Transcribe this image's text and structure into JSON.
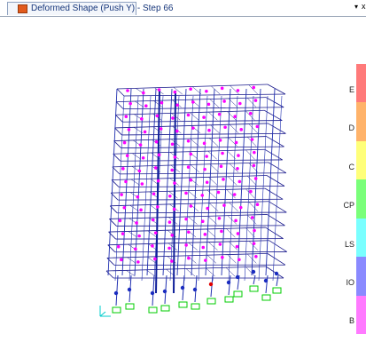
{
  "tab": {
    "label": "Deformed Shape (Push Y) - Step 66",
    "icon": "deformed-shape-icon",
    "menu_glyph": "▾",
    "close_glyph": "x"
  },
  "legend": {
    "labels": [
      "E",
      "D",
      "C",
      "CP",
      "LS",
      "IO",
      "B"
    ],
    "colors": [
      "#ff7a7a",
      "#ffb36a",
      "#ffff7a",
      "#7aff7a",
      "#7affff",
      "#8a8aff",
      "#ff7aff"
    ]
  },
  "colors": {
    "frame": "#1a1a8c",
    "column": "#2030b0",
    "hinge": "#ff00ff",
    "support": "#00cc00"
  }
}
